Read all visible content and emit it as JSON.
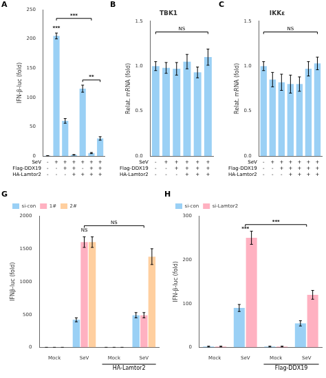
{
  "chart_data": [
    {
      "type": "bar",
      "panel_label": "A",
      "ylabel": "IFN-β-luc (fold)",
      "categories": [
        [
          "-",
          "-",
          "-"
        ],
        [
          "+",
          "-",
          "-"
        ],
        [
          "+",
          "+",
          "-"
        ],
        [
          "+",
          "+",
          "+"
        ],
        [
          "+",
          "-",
          "+"
        ],
        [
          "+",
          "+",
          "+"
        ],
        [
          "+",
          "+",
          "+"
        ]
      ],
      "row_labels": [
        "SeV",
        "Flag-DDX19",
        "HA-Lamtor2"
      ],
      "values": [
        0.5,
        205,
        60,
        2,
        115,
        5,
        30
      ],
      "errors": [
        0.2,
        5,
        4,
        0.5,
        6,
        1,
        3
      ],
      "ylim": [
        0,
        250
      ],
      "yticks": [
        0,
        50,
        100,
        150,
        200,
        250
      ],
      "grid": false,
      "annotations": [
        {
          "text": "***",
          "x1": 1,
          "x2": 1,
          "y": 215
        },
        {
          "text": "***",
          "x1": 1,
          "x2": 5,
          "y": 235
        },
        {
          "text": "**",
          "x1": 4,
          "x2": 6,
          "y": 130
        }
      ]
    },
    {
      "type": "bar",
      "panel_label": "B",
      "title": "TBK1",
      "ylabel": "Relat. mRNA (fold)",
      "categories": [
        [
          "-",
          "-",
          "-"
        ],
        [
          "+",
          "-",
          "-"
        ],
        [
          "+",
          "+",
          "-"
        ],
        [
          "+",
          "+",
          "+"
        ],
        [
          "+",
          "+",
          "+"
        ],
        [
          "+",
          "+",
          "+"
        ]
      ],
      "row_labels": [
        "SeV",
        "Flag-DDX19",
        "HA-Lamtor2"
      ],
      "values": [
        1.0,
        0.98,
        0.97,
        1.05,
        0.93,
        1.1
      ],
      "errors": [
        0.05,
        0.06,
        0.07,
        0.08,
        0.06,
        0.09
      ],
      "ylim": [
        0,
        1.5
      ],
      "yticks": [
        {
          "value": 0,
          "label": "0.0"
        },
        0.5,
        {
          "value": 1,
          "label": "1.0"
        },
        1.5
      ],
      "grid": false,
      "annotations": [
        {
          "text": "NS",
          "x1": 0,
          "x2": 5,
          "y": 1.38
        }
      ]
    },
    {
      "type": "bar",
      "panel_label": "C",
      "title": "IKKε",
      "ylabel": "Relat. mRNA (fold)",
      "categories": [
        [
          "-",
          "-",
          "-"
        ],
        [
          "+",
          "-",
          "-"
        ],
        [
          "+",
          "+",
          "-"
        ],
        [
          "+",
          "+",
          "+"
        ],
        [
          "+",
          "+",
          "+"
        ],
        [
          "+",
          "+",
          "+"
        ],
        [
          "+",
          "+",
          "+"
        ]
      ],
      "row_labels": [
        "SeV",
        "Flag-DDX19",
        "HA-Lamtor2"
      ],
      "values": [
        1.0,
        0.85,
        0.82,
        0.8,
        0.8,
        0.97,
        1.03
      ],
      "errors": [
        0.05,
        0.08,
        0.09,
        0.1,
        0.08,
        0.08,
        0.07
      ],
      "ylim": [
        0,
        1.5
      ],
      "yticks": [
        {
          "value": 0,
          "label": "0.0"
        },
        0.5,
        {
          "value": 1,
          "label": "1.0"
        },
        1.5
      ],
      "grid": false,
      "annotations": [
        {
          "text": "NS",
          "x1": 0,
          "x2": 6,
          "y": 1.38
        }
      ]
    },
    {
      "type": "bar",
      "panel_label": "G",
      "ylabel": "IFNβ-luc (fold)",
      "categories": [
        "Mock",
        "SeV",
        "Mock",
        "SeV"
      ],
      "series": [
        {
          "name": "si-con",
          "values": [
            2,
            420,
            2,
            490
          ],
          "errors": [
            1,
            30,
            1,
            40
          ]
        },
        {
          "name": "1#",
          "values": [
            2,
            1600,
            2,
            490
          ],
          "errors": [
            1,
            80,
            1,
            40
          ]
        },
        {
          "name": "2#",
          "values": [
            2,
            1600,
            2,
            1380
          ],
          "errors": [
            1,
            80,
            1,
            120
          ]
        }
      ],
      "ylim": [
        0,
        2000
      ],
      "yticks": [
        0,
        500,
        1000,
        1500,
        2000
      ],
      "grid": false,
      "legend": "upper left",
      "annotations": [
        {
          "text": "NS",
          "x1": 1,
          "x2": 1,
          "y": 1750
        },
        {
          "text": "NS",
          "x1": 1,
          "x2": 3,
          "y": 1850
        },
        {
          "text": "HA-Lamtor2",
          "x1": 2,
          "x2": 3
        }
      ]
    },
    {
      "type": "bar",
      "panel_label": "H",
      "ylabel": "IFN-β-luc (fold)",
      "categories": [
        "Mock",
        "SeV",
        "Mock",
        "SeV"
      ],
      "series": [
        {
          "name": "si-con",
          "values": [
            2,
            90,
            2,
            55
          ],
          "errors": [
            1,
            8,
            1,
            6
          ]
        },
        {
          "name": "si-Lamtor2",
          "values": [
            2,
            250,
            2,
            120
          ],
          "errors": [
            1,
            15,
            1,
            10
          ]
        }
      ],
      "ylim": [
        0,
        300
      ],
      "yticks": [
        0,
        100,
        200,
        300
      ],
      "grid": false,
      "legend": "upper left",
      "annotations": [
        {
          "text": "***",
          "x1": 1,
          "x2": 1,
          "y": 265
        },
        {
          "text": "***",
          "x1": 1,
          "x2": 3,
          "y": 280
        },
        {
          "text": "Flag-DDX19",
          "x1": 2,
          "x2": 3
        }
      ]
    }
  ]
}
